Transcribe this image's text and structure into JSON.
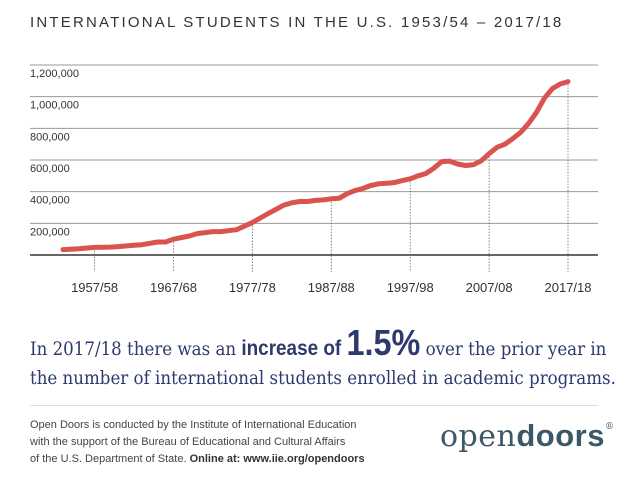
{
  "chart_data": {
    "type": "line",
    "title": "INTERNATIONAL STUDENTS IN THE U.S. 1953/54 – 2017/18",
    "xlabel": "",
    "ylabel": "",
    "ylim": [
      0,
      1200000
    ],
    "yticks": [
      "200,000",
      "400,000",
      "600,000",
      "800,000",
      "1,000,000",
      "1,200,000"
    ],
    "ytick_values": [
      200000,
      400000,
      600000,
      800000,
      1000000,
      1200000
    ],
    "xticks": [
      "1957/58",
      "1967/68",
      "1977/78",
      "1987/88",
      "1997/98",
      "2007/08",
      "2017/18"
    ],
    "xtick_values": [
      1957,
      1967,
      1977,
      1987,
      1997,
      2007,
      2017
    ],
    "grid": true,
    "line_color": "#d9534f",
    "x": [
      1953,
      1955,
      1957,
      1959,
      1960,
      1962,
      1963,
      1965,
      1966,
      1967,
      1969,
      1970,
      1972,
      1973,
      1975,
      1977,
      1979,
      1980,
      1981,
      1982,
      1983,
      1984,
      1985,
      1986,
      1987,
      1988,
      1989,
      1990,
      1991,
      1992,
      1993,
      1994,
      1995,
      1996,
      1997,
      1998,
      1999,
      2000,
      2001,
      2002,
      2003,
      2004,
      2005,
      2006,
      2007,
      2008,
      2009,
      2010,
      2011,
      2012,
      2013,
      2014,
      2015,
      2016,
      2017
    ],
    "values": [
      34000,
      40000,
      48000,
      50000,
      53000,
      62000,
      65000,
      82000,
      82000,
      100000,
      120000,
      135000,
      148000,
      148000,
      160000,
      205000,
      262000,
      288000,
      315000,
      330000,
      338000,
      338000,
      345000,
      348000,
      355000,
      358000,
      387000,
      407000,
      420000,
      439000,
      450000,
      453000,
      457000,
      470000,
      481000,
      500000,
      515000,
      548000,
      590000,
      593000,
      575000,
      565000,
      570000,
      595000,
      640000,
      680000,
      700000,
      735000,
      775000,
      830000,
      900000,
      990000,
      1050000,
      1080000,
      1095000
    ]
  },
  "headline": {
    "part1": "In 2017/18 there was an ",
    "bold": "increase of ",
    "big": "1.5%",
    "part2": " over the prior year in",
    "line2": "the number of international students enrolled in academic programs."
  },
  "footer": {
    "line1": "Open Doors is conducted by the Institute of International Education",
    "line2": "with the support of the Bureau of Educational and Cultural Affairs",
    "line3": "of the U.S. Department of State. ",
    "online": "Online at: www.iie.org/opendoors"
  },
  "logo": {
    "light": "open",
    "bold": "doors",
    "mark": "®"
  }
}
